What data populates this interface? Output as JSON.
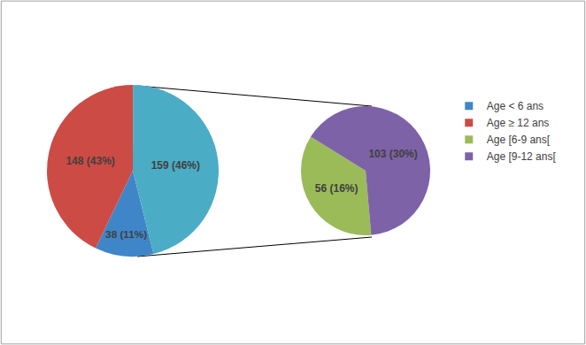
{
  "chart_data": [
    {
      "type": "pie",
      "categories": [
        "Age < 6 ans",
        "Age ≥ 12 ans",
        null
      ],
      "values": [
        38,
        148,
        159
      ],
      "value_labels": [
        "38 (11%)",
        "148 (43%)",
        "159 (46%)"
      ],
      "colors": [
        "#3F86C8",
        "#CD4B45",
        "#4BACC6"
      ],
      "data_labels": true,
      "legend": "right"
    },
    {
      "type": "pie",
      "categories": [
        "Age [6-9 ans[",
        "Age [9-12 ans["
      ],
      "values": [
        56,
        103
      ],
      "value_labels": [
        "56 (16%)",
        "103 (30%)"
      ],
      "colors": [
        "#9BBB59",
        "#7E62A8"
      ],
      "data_labels": true,
      "legend": "right"
    }
  ]
}
